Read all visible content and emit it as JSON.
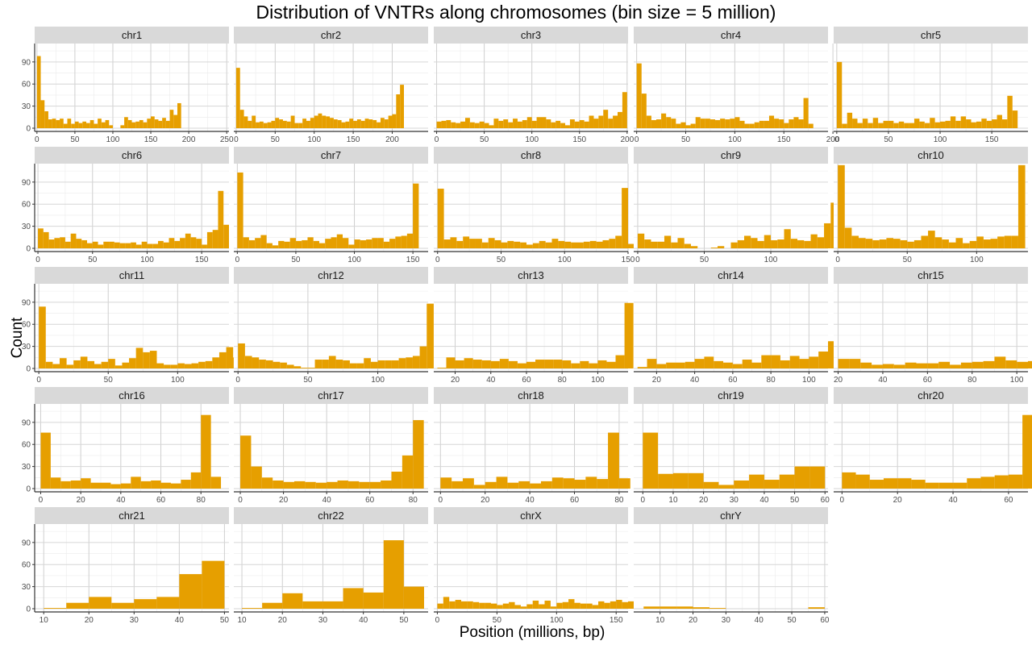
{
  "chart_data": {
    "type": "bar",
    "title": "Distribution of VNTRs along chromosomes (bin size = 5 million)",
    "xlabel": "Position (millions, bp)",
    "ylabel": "Count",
    "ylim": [
      0,
      115
    ],
    "y_ticks": [
      0,
      30,
      60,
      90
    ],
    "bin_width": 5,
    "bar_color": "#E69F00",
    "strip_color": "#D9D9D9",
    "grid": true,
    "layout": {
      "rows": 5,
      "cols": 5,
      "x_axis_shared_per_row": true
    },
    "panels": [
      {
        "name": "chr1",
        "xlim": [
          -3,
          253
        ],
        "x_ticks": [
          0,
          50,
          100,
          150,
          200,
          250
        ],
        "start": 0,
        "values": [
          98,
          38,
          23,
          12,
          13,
          11,
          13,
          6,
          13,
          6,
          9,
          7,
          9,
          7,
          11,
          6,
          13,
          8,
          11,
          4,
          0,
          0,
          4,
          15,
          11,
          8,
          9,
          11,
          8,
          13,
          16,
          12,
          10,
          14,
          10,
          25,
          18,
          34
        ]
      },
      {
        "name": "chr2",
        "xlim": [
          -3,
          246
        ],
        "x_ticks": [
          0,
          50,
          100,
          150,
          200
        ],
        "start": 0,
        "values": [
          82,
          25,
          16,
          10,
          17,
          8,
          9,
          7,
          8,
          10,
          14,
          12,
          10,
          9,
          17,
          7,
          7,
          13,
          10,
          14,
          17,
          20,
          17,
          16,
          14,
          12,
          11,
          8,
          9,
          13,
          10,
          12,
          10,
          13,
          12,
          11,
          8,
          14,
          12,
          17,
          19,
          46,
          59
        ]
      },
      {
        "name": "chr3",
        "xlim": [
          -3,
          201
        ],
        "x_ticks": [
          0,
          50,
          100,
          150,
          200
        ],
        "start": 0,
        "values": [
          9,
          10,
          11,
          8,
          7,
          9,
          14,
          8,
          7,
          9,
          7,
          4,
          13,
          10,
          12,
          8,
          13,
          9,
          11,
          15,
          10,
          15,
          15,
          12,
          8,
          10,
          7,
          4,
          12,
          9,
          11,
          9,
          17,
          13,
          17,
          25,
          13,
          17,
          22,
          49
        ]
      },
      {
        "name": "chr4",
        "xlim": [
          -3,
          195
        ],
        "x_ticks": [
          0,
          50,
          100,
          150,
          200
        ],
        "start": 0,
        "values": [
          88,
          47,
          17,
          11,
          12,
          20,
          15,
          13,
          6,
          8,
          4,
          6,
          15,
          13,
          13,
          12,
          11,
          13,
          12,
          13,
          15,
          10,
          6,
          6,
          8,
          10,
          10,
          17,
          13,
          12,
          7,
          12,
          15,
          12,
          41,
          6
        ]
      },
      {
        "name": "chr5",
        "xlim": [
          -3,
          185
        ],
        "x_ticks": [
          0,
          50,
          100,
          150
        ],
        "start": 0,
        "values": [
          90,
          6,
          21,
          13,
          7,
          13,
          7,
          14,
          7,
          10,
          10,
          7,
          9,
          7,
          7,
          13,
          9,
          7,
          14,
          8,
          9,
          10,
          16,
          10,
          16,
          12,
          8,
          9,
          13,
          10,
          12,
          18,
          12,
          44,
          24
        ]
      },
      {
        "name": "chr6",
        "xlim": [
          -3,
          175
        ],
        "x_ticks": [
          0,
          50,
          100,
          150
        ],
        "start": 0,
        "values": [
          27,
          22,
          12,
          14,
          15,
          9,
          20,
          13,
          11,
          7,
          9,
          5,
          9,
          9,
          8,
          7,
          7,
          8,
          5,
          9,
          6,
          6,
          10,
          8,
          14,
          10,
          14,
          20,
          15,
          13,
          5,
          22,
          25,
          78,
          32
        ]
      },
      {
        "name": "chr7",
        "xlim": [
          -3,
          163
        ],
        "x_ticks": [
          0,
          50,
          100,
          150
        ],
        "start": 0,
        "values": [
          103,
          15,
          11,
          14,
          18,
          7,
          4,
          10,
          9,
          14,
          10,
          11,
          15,
          10,
          7,
          13,
          15,
          19,
          14,
          5,
          12,
          11,
          12,
          14,
          14,
          9,
          13,
          16,
          17,
          20,
          88
        ]
      },
      {
        "name": "chr8",
        "xlim": [
          -3,
          150
        ],
        "x_ticks": [
          0,
          50,
          100,
          150
        ],
        "start": 0,
        "values": [
          81,
          12,
          15,
          10,
          16,
          13,
          13,
          8,
          14,
          11,
          8,
          10,
          9,
          8,
          5,
          7,
          10,
          8,
          13,
          10,
          9,
          8,
          8,
          9,
          10,
          9,
          11,
          13,
          17,
          82,
          6
        ]
      },
      {
        "name": "chr9",
        "xlim": [
          -3,
          143
        ],
        "x_ticks": [
          0,
          50,
          100
        ],
        "start": 0,
        "values": [
          20,
          12,
          9,
          9,
          17,
          8,
          14,
          6,
          3,
          0,
          0,
          1,
          3,
          0,
          8,
          11,
          17,
          14,
          10,
          18,
          11,
          12,
          26,
          13,
          11,
          10,
          19,
          15,
          34,
          62
        ]
      },
      {
        "name": "chr10",
        "xlim": [
          -3,
          137
        ],
        "x_ticks": [
          0,
          50,
          100
        ],
        "start": 0,
        "values": [
          113,
          28,
          17,
          14,
          13,
          11,
          12,
          14,
          13,
          11,
          9,
          11,
          17,
          24,
          15,
          12,
          8,
          14,
          7,
          10,
          16,
          12,
          13,
          16,
          17,
          17,
          113
        ]
      },
      {
        "name": "chr11",
        "xlim": [
          -3,
          137
        ],
        "x_ticks": [
          0,
          50,
          100
        ],
        "start": 0,
        "values": [
          84,
          9,
          6,
          14,
          5,
          11,
          16,
          10,
          6,
          9,
          13,
          4,
          8,
          14,
          28,
          22,
          24,
          7,
          5,
          5,
          7,
          6,
          7,
          9,
          10,
          15,
          22,
          29,
          15
        ]
      },
      {
        "name": "chr12",
        "xlim": [
          -3,
          136
        ],
        "x_ticks": [
          0,
          50,
          100
        ],
        "start": 0,
        "values": [
          34,
          17,
          15,
          12,
          11,
          9,
          8,
          5,
          3,
          1,
          1,
          12,
          12,
          17,
          12,
          11,
          7,
          7,
          14,
          9,
          11,
          11,
          11,
          14,
          15,
          17,
          30,
          88
        ]
      },
      {
        "name": "chr13",
        "xlim": [
          8,
          117
        ],
        "x_ticks": [
          20,
          40,
          60,
          80,
          100
        ],
        "start": 10,
        "values": [
          1,
          15,
          11,
          14,
          12,
          11,
          10,
          13,
          10,
          7,
          9,
          12,
          12,
          12,
          11,
          7,
          10,
          7,
          11,
          9,
          18,
          89
        ]
      },
      {
        "name": "chr14",
        "xlim": [
          8,
          110
        ],
        "x_ticks": [
          20,
          40,
          60,
          80,
          100
        ],
        "start": 10,
        "values": [
          2,
          13,
          6,
          8,
          8,
          9,
          13,
          16,
          10,
          8,
          6,
          12,
          8,
          18,
          18,
          11,
          17,
          13,
          16,
          23,
          37,
          33
        ]
      },
      {
        "name": "chr15",
        "xlim": [
          18,
          105
        ],
        "x_ticks": [
          20,
          40,
          60,
          80,
          100
        ],
        "start": 20,
        "values": [
          13,
          13,
          8,
          5,
          6,
          5,
          8,
          7,
          7,
          9,
          5,
          8,
          9,
          10,
          16,
          11,
          9,
          10,
          13,
          13,
          20
        ]
      },
      {
        "name": "chr16",
        "xlim": [
          -3,
          94
        ],
        "x_ticks": [
          0,
          20,
          40,
          60,
          80
        ],
        "start": 0,
        "values": [
          76,
          15,
          10,
          11,
          14,
          8,
          8,
          6,
          7,
          16,
          10,
          11,
          8,
          7,
          12,
          22,
          100,
          16
        ]
      },
      {
        "name": "chr17",
        "xlim": [
          -3,
          87
        ],
        "x_ticks": [
          0,
          20,
          40,
          60,
          80
        ],
        "start": 0,
        "values": [
          72,
          30,
          15,
          11,
          9,
          10,
          9,
          8,
          9,
          11,
          10,
          9,
          9,
          11,
          23,
          45,
          93
        ]
      },
      {
        "name": "chr18",
        "xlim": [
          -3,
          84
        ],
        "x_ticks": [
          0,
          20,
          40,
          60,
          80
        ],
        "start": 0,
        "values": [
          15,
          10,
          14,
          5,
          9,
          16,
          8,
          10,
          7,
          10,
          15,
          14,
          12,
          16,
          13,
          76,
          14
        ]
      },
      {
        "name": "chr19",
        "xlim": [
          -3,
          61
        ],
        "x_ticks": [
          0,
          10,
          20,
          30,
          40,
          50,
          60
        ],
        "start": 0,
        "values": [
          76,
          20,
          21,
          21,
          9,
          5,
          11,
          19,
          12,
          19,
          30,
          30
        ]
      },
      {
        "name": "chr20",
        "xlim": [
          -3,
          67
        ],
        "x_ticks": [
          0,
          20,
          40,
          60
        ],
        "start": 0,
        "values": [
          22,
          19,
          12,
          14,
          14,
          12,
          8,
          8,
          8,
          14,
          16,
          18,
          19,
          100
        ]
      },
      {
        "name": "chr21",
        "xlim": [
          8,
          51
        ],
        "x_ticks": [
          10,
          20,
          30,
          40,
          50
        ],
        "start": 10,
        "values": [
          1,
          8,
          16,
          8,
          13,
          16,
          47,
          65
        ]
      },
      {
        "name": "chr22",
        "xlim": [
          8,
          56
        ],
        "x_ticks": [
          10,
          20,
          30,
          40,
          50
        ],
        "start": 10,
        "values": [
          1,
          8,
          21,
          10,
          10,
          28,
          22,
          93,
          30
        ]
      },
      {
        "name": "chrX",
        "xlim": [
          -3,
          160
        ],
        "x_ticks": [
          0,
          50,
          100,
          150
        ],
        "start": 0,
        "values": [
          7,
          16,
          10,
          12,
          10,
          10,
          9,
          8,
          8,
          7,
          5,
          7,
          9,
          5,
          3,
          6,
          11,
          6,
          11,
          3,
          8,
          9,
          13,
          8,
          7,
          7,
          5,
          10,
          8,
          10,
          12,
          9,
          10
        ]
      },
      {
        "name": "chrY",
        "xlim": [
          2,
          61
        ],
        "x_ticks": [
          10,
          20,
          30,
          40,
          50,
          60
        ],
        "start": 0,
        "values": [
          0,
          3,
          3,
          3,
          2,
          1,
          0,
          0,
          0,
          0,
          0,
          2
        ]
      }
    ]
  }
}
